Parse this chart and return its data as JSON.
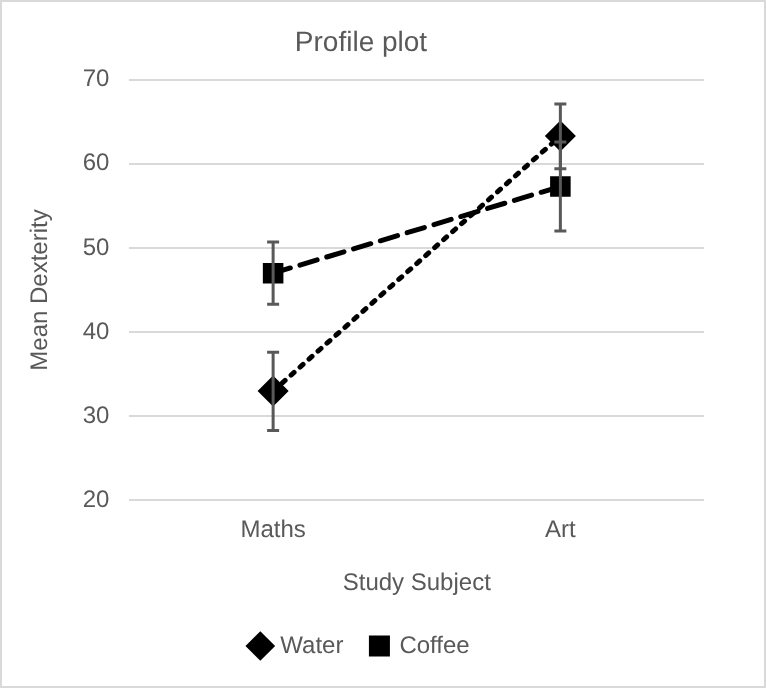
{
  "chart_data": {
    "type": "line",
    "title": "Profile plot",
    "xlabel": "Study Subject",
    "ylabel": "Mean Dexterity",
    "categories": [
      "Maths",
      "Art"
    ],
    "series": [
      {
        "name": "Water",
        "color": "#000000",
        "values": [
          33,
          63.3
        ],
        "errors": [
          [
            28.3,
            37.6
          ],
          [
            59.4,
            67.1
          ]
        ],
        "marker": "diamond",
        "line_style": "dotted"
      },
      {
        "name": "Coffee",
        "color": "#000000",
        "values": [
          47,
          57.3
        ],
        "errors": [
          [
            43.3,
            50.7
          ],
          [
            52,
            62.6
          ]
        ],
        "marker": "square",
        "line_style": "dashed"
      }
    ],
    "ylim": [
      20,
      70
    ],
    "yticks": [
      20,
      30,
      40,
      50,
      60,
      70
    ],
    "grid": "y",
    "legend": "bottom"
  }
}
